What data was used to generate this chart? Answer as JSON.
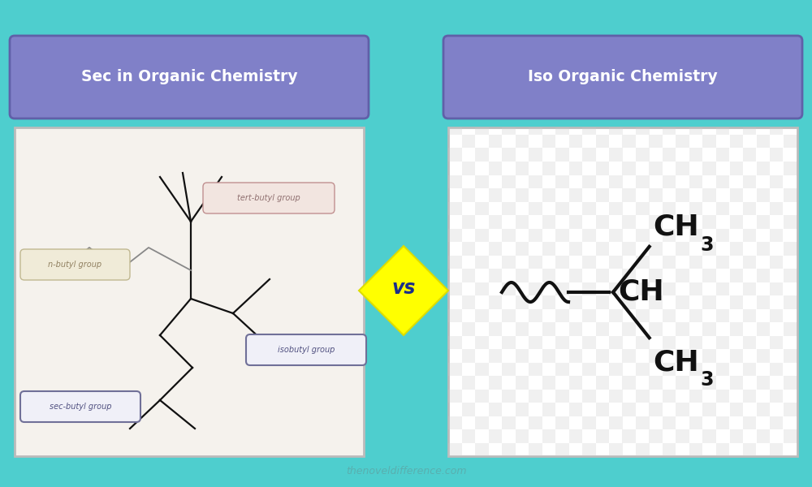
{
  "bg_color": "#4ECECE",
  "left_label": "Sec in Organic Chemistry",
  "right_label": "Iso Organic Chemistry",
  "label_bg_color": "#8080C8",
  "label_text_color": "#FFFFFF",
  "vs_text": "vs",
  "vs_bg_color": "#FFFF00",
  "vs_text_color": "#1A2E8A",
  "watermark": "thenoveldifference.com",
  "watermark_color": "#5AACAC",
  "left_panel_color": "#F5F2ED",
  "right_panel_color": "#F8F8F8",
  "checker_color": "#CCCCCC",
  "mol_color": "#111111",
  "label_line_color_tert": "#C09090",
  "label_fill_tert": "#F2E5E0",
  "label_text_tert": "#907070",
  "label_line_color_n": "#C0B890",
  "label_fill_n": "#F0EBD8",
  "label_text_n": "#908060",
  "label_line_color_iso": "#707098",
  "label_fill_iso": "#F0F0F8",
  "label_text_iso": "#505080",
  "label_line_color_sec": "#707098",
  "label_fill_sec": "#F0F0F8",
  "label_text_sec": "#505080"
}
